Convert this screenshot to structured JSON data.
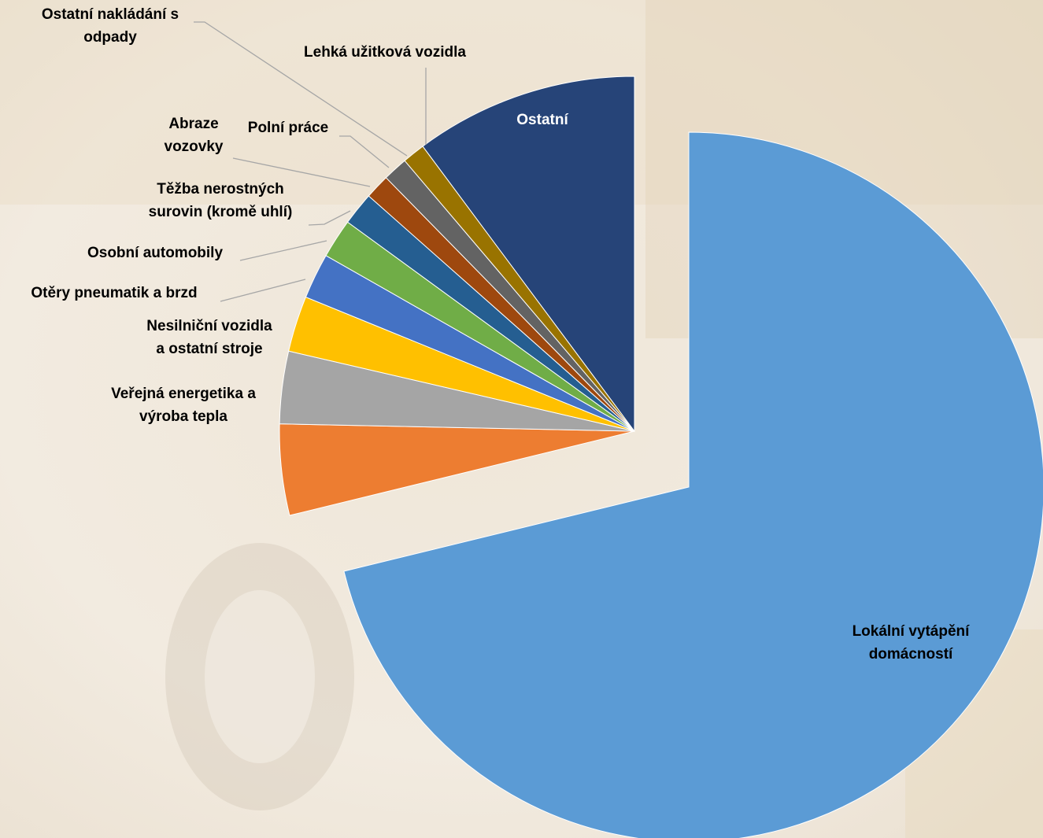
{
  "chart_data": {
    "type": "pie",
    "title": "",
    "exploded_category": "Lokální vytápění domácností",
    "categories": [
      "Lokální vytápění domácností",
      "Veřejná energetika a výroba tepla",
      "Nesilniční vozidla a ostatní stroje",
      "Otěry pneumatik a brzd",
      "Osobní automobily",
      "Těžba nerostných surovin (kromě uhlí)",
      "Abraze vozovky",
      "Polní práce",
      "Ostatní nakládání s odpady",
      "Lehká užitková vozidla",
      "Ostatní"
    ],
    "values": [
      75.6,
      4.4,
      3.5,
      2.7,
      2.2,
      1.9,
      1.6,
      1.2,
      1.2,
      1.1,
      10.8
    ],
    "colors": [
      "#5b9bd5",
      "#ed7d31",
      "#a5a5a5",
      "#ffc000",
      "#4472c4",
      "#70ad47",
      "#255e91",
      "#9e480e",
      "#636363",
      "#997300",
      "#264478"
    ],
    "labels": [
      {
        "lines": [
          "Lokální vytápění",
          "domácností"
        ]
      },
      {
        "lines": [
          "Veřejná energetika a",
          "výroba tepla"
        ]
      },
      {
        "lines": [
          "Nesilniční vozidla",
          "a ostatní stroje"
        ]
      },
      {
        "lines": [
          "Otěry pneumatik a brzd"
        ]
      },
      {
        "lines": [
          "Osobní automobily"
        ]
      },
      {
        "lines": [
          "Těžba nerostných",
          "surovin (kromě uhlí)"
        ]
      },
      {
        "lines": [
          "Abraze",
          "vozovky"
        ]
      },
      {
        "lines": [
          "Polní práce"
        ]
      },
      {
        "lines": [
          "Ostatní nakládání s",
          "odpady"
        ]
      },
      {
        "lines": [
          "Lehká užitková vozidla"
        ]
      },
      {
        "lines": [
          "Ostatní"
        ]
      }
    ]
  }
}
